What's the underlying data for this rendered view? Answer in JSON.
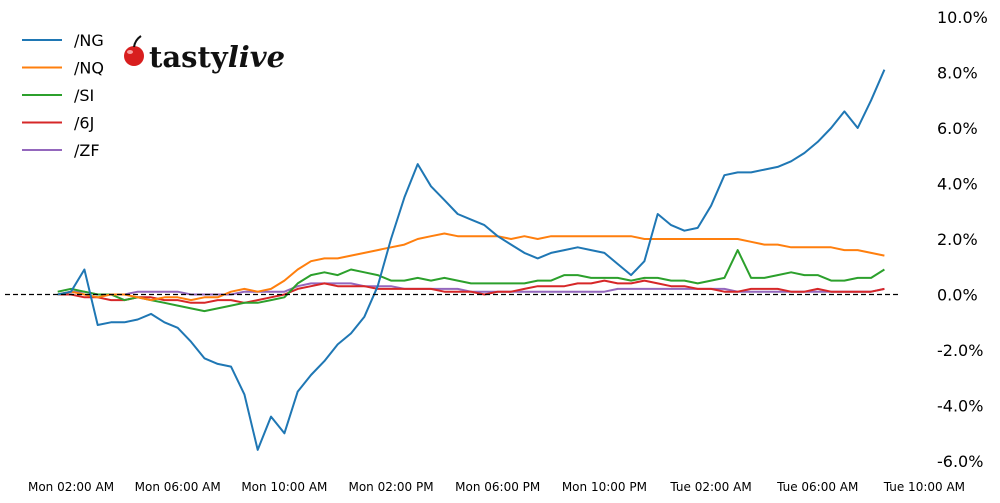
{
  "chart_data": {
    "type": "line",
    "title": "",
    "xlabel": "",
    "ylabel": "",
    "logo": "tastylive",
    "ylim": [
      -6,
      10
    ],
    "xlim": [
      "Mon 00:00",
      "Tue 10:00"
    ],
    "y_ticks": [
      "10.0%",
      "8.0%",
      "6.0%",
      "4.0%",
      "2.0%",
      "0.0%",
      "-2.0%",
      "-4.0%",
      "-6.0%"
    ],
    "y_tick_values": [
      10,
      8,
      6,
      4,
      2,
      0,
      -2,
      -4,
      -6
    ],
    "x_ticks": [
      "Mon 02:00 AM",
      "Mon 06:00 AM",
      "Mon 10:00 AM",
      "Mon 02:00 PM",
      "Mon 06:00 PM",
      "Mon 10:00 PM",
      "Tue 02:00 AM",
      "Tue 06:00 AM",
      "Tue 10:00 AM"
    ],
    "x_tick_values": [
      "Mon 02:00",
      "Mon 06:00",
      "Mon 10:00",
      "Mon 14:00",
      "Mon 18:00",
      "Mon 22:00",
      "Tue 02:00",
      "Tue 06:00",
      "Tue 10:00"
    ],
    "reference_line": 0,
    "grid": false,
    "legend_placement": "top-left",
    "y_axis_side": "right",
    "x": [
      "Mon 01:30",
      "Mon 02:00",
      "Mon 02:30",
      "Mon 03:00",
      "Mon 03:30",
      "Mon 04:00",
      "Mon 04:30",
      "Mon 05:00",
      "Mon 05:30",
      "Mon 06:00",
      "Mon 06:30",
      "Mon 07:00",
      "Mon 07:30",
      "Mon 08:00",
      "Mon 08:30",
      "Mon 09:00",
      "Mon 09:30",
      "Mon 10:00",
      "Mon 10:30",
      "Mon 11:00",
      "Mon 11:30",
      "Mon 12:00",
      "Mon 12:30",
      "Mon 13:00",
      "Mon 13:30",
      "Mon 14:00",
      "Mon 14:30",
      "Mon 15:00",
      "Mon 15:30",
      "Mon 16:00",
      "Mon 16:30",
      "Mon 17:00",
      "Mon 17:30",
      "Mon 18:00",
      "Mon 18:30",
      "Mon 19:00",
      "Mon 19:30",
      "Mon 20:00",
      "Mon 20:30",
      "Mon 21:00",
      "Mon 21:30",
      "Mon 22:00",
      "Mon 22:30",
      "Mon 23:00",
      "Mon 23:30",
      "Tue 00:00",
      "Tue 00:30",
      "Tue 01:00",
      "Tue 01:30",
      "Tue 02:00",
      "Tue 02:30",
      "Tue 03:00",
      "Tue 03:30",
      "Tue 04:00",
      "Tue 04:30",
      "Tue 05:00",
      "Tue 05:30",
      "Tue 06:00",
      "Tue 06:30",
      "Tue 07:00",
      "Tue 07:30",
      "Tue 08:00",
      "Tue 08:30"
    ],
    "series": [
      {
        "name": "/NG",
        "color": "#1f77b4",
        "values": [
          0,
          0.1,
          0.9,
          -1.1,
          -1.0,
          -1.0,
          -0.9,
          -0.7,
          -1.0,
          -1.2,
          -1.7,
          -2.3,
          -2.5,
          -2.6,
          -3.6,
          -5.6,
          -4.4,
          -5.0,
          -3.5,
          -2.9,
          -2.4,
          -1.8,
          -1.4,
          -0.8,
          0.3,
          2.0,
          3.5,
          4.7,
          3.9,
          3.4,
          2.9,
          2.7,
          2.5,
          2.1,
          1.8,
          1.5,
          1.3,
          1.5,
          1.6,
          1.7,
          1.6,
          1.5,
          1.1,
          0.7,
          1.2,
          2.9,
          2.5,
          2.3,
          2.4,
          3.2,
          4.3,
          4.4,
          4.4,
          4.5,
          4.6,
          4.8,
          5.1,
          5.5,
          6.0,
          6.6,
          6.0,
          7.0,
          8.1
        ]
      },
      {
        "name": "/NQ",
        "color": "#ff7f0e",
        "values": [
          0,
          0.1,
          0,
          -0.1,
          0,
          0,
          -0.1,
          -0.2,
          -0.1,
          -0.1,
          -0.2,
          -0.1,
          -0.1,
          0.1,
          0.2,
          0.1,
          0.2,
          0.5,
          0.9,
          1.2,
          1.3,
          1.3,
          1.4,
          1.5,
          1.6,
          1.7,
          1.8,
          2.0,
          2.1,
          2.2,
          2.1,
          2.1,
          2.1,
          2.1,
          2.0,
          2.1,
          2.0,
          2.1,
          2.1,
          2.1,
          2.1,
          2.1,
          2.1,
          2.1,
          2.0,
          2.0,
          2.0,
          2.0,
          2.0,
          2.0,
          2.0,
          2.0,
          1.9,
          1.8,
          1.8,
          1.7,
          1.7,
          1.7,
          1.7,
          1.6,
          1.6,
          1.5,
          1.4
        ]
      },
      {
        "name": "/SI",
        "color": "#2ca02c",
        "values": [
          0.1,
          0.2,
          0.1,
          0,
          0,
          -0.2,
          -0.1,
          -0.2,
          -0.3,
          -0.4,
          -0.5,
          -0.6,
          -0.5,
          -0.4,
          -0.3,
          -0.3,
          -0.2,
          -0.1,
          0.4,
          0.7,
          0.8,
          0.7,
          0.9,
          0.8,
          0.7,
          0.5,
          0.5,
          0.6,
          0.5,
          0.6,
          0.5,
          0.4,
          0.4,
          0.4,
          0.4,
          0.4,
          0.5,
          0.5,
          0.7,
          0.7,
          0.6,
          0.6,
          0.6,
          0.5,
          0.6,
          0.6,
          0.5,
          0.5,
          0.4,
          0.5,
          0.6,
          1.6,
          0.6,
          0.6,
          0.7,
          0.8,
          0.7,
          0.7,
          0.5,
          0.5,
          0.6,
          0.6,
          0.9
        ]
      },
      {
        "name": "/6J",
        "color": "#d62728",
        "values": [
          0,
          0,
          -0.1,
          -0.1,
          -0.2,
          -0.2,
          -0.1,
          -0.1,
          -0.2,
          -0.2,
          -0.3,
          -0.3,
          -0.2,
          -0.2,
          -0.3,
          -0.2,
          -0.1,
          0,
          0.2,
          0.3,
          0.4,
          0.3,
          0.3,
          0.3,
          0.2,
          0.2,
          0.2,
          0.2,
          0.2,
          0.1,
          0.1,
          0.1,
          0,
          0.1,
          0.1,
          0.2,
          0.3,
          0.3,
          0.3,
          0.4,
          0.4,
          0.5,
          0.4,
          0.4,
          0.5,
          0.4,
          0.3,
          0.3,
          0.2,
          0.2,
          0.1,
          0.1,
          0.2,
          0.2,
          0.2,
          0.1,
          0.1,
          0.2,
          0.1,
          0.1,
          0.1,
          0.1,
          0.2
        ]
      },
      {
        "name": "/ZF",
        "color": "#9467bd",
        "values": [
          0,
          0.1,
          0.1,
          0,
          0,
          0,
          0.1,
          0.1,
          0.1,
          0.1,
          0,
          0,
          0,
          0,
          0.1,
          0.1,
          0.1,
          0.1,
          0.3,
          0.4,
          0.4,
          0.4,
          0.4,
          0.3,
          0.3,
          0.3,
          0.2,
          0.2,
          0.2,
          0.2,
          0.2,
          0.1,
          0.1,
          0.1,
          0.1,
          0.1,
          0.1,
          0.1,
          0.1,
          0.1,
          0.1,
          0.1,
          0.2,
          0.2,
          0.2,
          0.2,
          0.2,
          0.2,
          0.2,
          0.2,
          0.2,
          0.1,
          0.1,
          0.1,
          0.1,
          0.1,
          0.1,
          0.1,
          0.1,
          0.1,
          0.1,
          0.1,
          0.2
        ]
      }
    ]
  }
}
